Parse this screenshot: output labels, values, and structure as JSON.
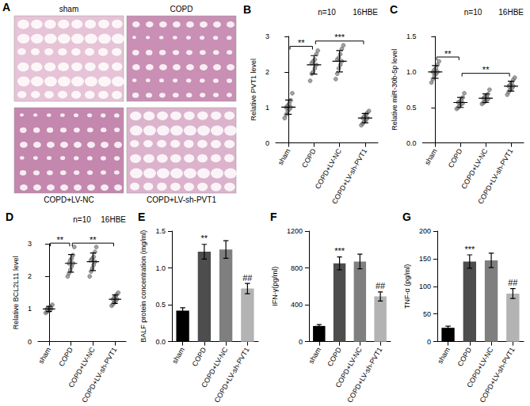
{
  "image_panel": {
    "letter": "A",
    "labels": [
      "sham",
      "COPD",
      "COPD+LV-NC",
      "COPD+LV-sh-PVT1"
    ]
  },
  "chart_data": [
    {
      "letter": "B",
      "type": "scatter",
      "annotations": [
        "n=10",
        "16HBE"
      ],
      "y_label": "Relative PVT1 level",
      "categories": [
        "sham",
        "COPD",
        "COPD+LV-NC",
        "COPD+LV-sh-PVT1"
      ],
      "points": [
        [
          0.7,
          0.8,
          0.9,
          0.95,
          1.0,
          1.0,
          1.05,
          1.1,
          1.2,
          1.4
        ],
        [
          1.75,
          1.95,
          2.0,
          2.1,
          2.2,
          2.25,
          2.3,
          2.35,
          2.5,
          2.6
        ],
        [
          1.8,
          1.95,
          2.1,
          2.2,
          2.3,
          2.35,
          2.4,
          2.5,
          2.65,
          2.75
        ],
        [
          0.5,
          0.55,
          0.6,
          0.65,
          0.7,
          0.7,
          0.75,
          0.8,
          0.85,
          0.9
        ]
      ],
      "means": [
        1.01,
        2.2,
        2.3,
        0.7
      ],
      "errors": [
        0.2,
        0.26,
        0.3,
        0.13
      ],
      "color": "#8c8c8c",
      "marker": "circle",
      "grid": false,
      "ylim": [
        0,
        3
      ],
      "yticks": [
        0,
        1,
        2,
        3
      ],
      "brackets": [
        {
          "from": "sham",
          "to": "COPD",
          "text": "**"
        },
        {
          "from": "COPD",
          "to": "COPD+LV-sh-PVT1",
          "text": "***"
        }
      ]
    },
    {
      "letter": "C",
      "type": "scatter",
      "annotations": [
        "n=10",
        "16HBE"
      ],
      "y_label": "Relative miR-30b-5p level",
      "categories": [
        "sham",
        "COPD",
        "COPD+LV-NC",
        "COPD+LV-sh-PVT1"
      ],
      "points": [
        [
          0.85,
          0.9,
          0.95,
          0.97,
          1.0,
          1.0,
          1.03,
          1.05,
          1.1,
          1.15
        ],
        [
          0.48,
          0.5,
          0.52,
          0.55,
          0.56,
          0.57,
          0.58,
          0.6,
          0.64,
          0.7
        ],
        [
          0.55,
          0.57,
          0.58,
          0.6,
          0.62,
          0.63,
          0.65,
          0.66,
          0.69,
          0.75
        ],
        [
          0.68,
          0.72,
          0.75,
          0.77,
          0.8,
          0.8,
          0.82,
          0.85,
          0.89,
          0.92
        ]
      ],
      "means": [
        1.0,
        0.57,
        0.63,
        0.8
      ],
      "errors": [
        0.09,
        0.07,
        0.06,
        0.07
      ],
      "color": "#8c8c8c",
      "marker": "circle",
      "grid": false,
      "ylim": [
        0,
        1.5
      ],
      "yticks": [
        {
          "value": 0,
          "label": "0.0"
        },
        0.5,
        {
          "value": 1,
          "label": "1.0"
        },
        1.5
      ],
      "brackets": [
        {
          "from": "sham",
          "to": "COPD",
          "text": "**"
        },
        {
          "from": "COPD",
          "to": "COPD+LV-sh-PVT1",
          "text": "**"
        }
      ]
    },
    {
      "letter": "D",
      "type": "scatter",
      "annotations": [
        "n=10",
        "16HBE"
      ],
      "y_label": "Relative BCL2L11 level",
      "categories": [
        "sham",
        "COPD",
        "COPD+LV-NC",
        "COPD+LV-sh-PVT1"
      ],
      "points": [
        [
          0.88,
          0.92,
          0.95,
          0.97,
          1.0,
          1.0,
          1.02,
          1.05,
          1.08,
          1.13
        ],
        [
          2.0,
          2.1,
          2.2,
          2.3,
          2.4,
          2.4,
          2.5,
          2.55,
          2.65,
          2.9
        ],
        [
          2.0,
          2.15,
          2.25,
          2.35,
          2.45,
          2.5,
          2.55,
          2.6,
          2.75,
          2.9
        ],
        [
          1.1,
          1.15,
          1.2,
          1.25,
          1.3,
          1.3,
          1.35,
          1.4,
          1.45,
          1.5
        ]
      ],
      "means": [
        1.0,
        2.4,
        2.45,
        1.3
      ],
      "errors": [
        0.08,
        0.27,
        0.27,
        0.13
      ],
      "color": "#8c8c8c",
      "marker": "circle",
      "grid": false,
      "ylim": [
        0,
        3
      ],
      "yticks": [
        0,
        1,
        2,
        3
      ],
      "brackets": [
        {
          "from": "sham",
          "to": "COPD",
          "text": "**"
        },
        {
          "from": "COPD",
          "to": "COPD+LV-sh-PVT1",
          "text": "**"
        }
      ]
    },
    {
      "letter": "E",
      "type": "bar",
      "y_label": "BALF protein concentration (mg/ml)",
      "categories": [
        "sham",
        "COPD",
        "COPD+LV-NC",
        "COPD+LV-sh-PVT1"
      ],
      "values": [
        0.42,
        1.22,
        1.25,
        0.72
      ],
      "errors": [
        0.04,
        0.1,
        0.12,
        0.07
      ],
      "colors": [
        "#000000",
        "#4d4d4d",
        "#7f7f7f",
        "#b3b3b3"
      ],
      "grid": false,
      "ylim": [
        0,
        1.5
      ],
      "yticks": [
        {
          "value": 0,
          "label": "0.0"
        },
        0.5,
        {
          "value": 1,
          "label": "1.0"
        },
        1.5
      ],
      "marks": [
        {
          "category": "COPD",
          "text": "**"
        },
        {
          "category": "COPD+LV-sh-PVT1",
          "text": "##"
        }
      ]
    },
    {
      "letter": "F",
      "type": "bar",
      "y_label": "IFN-γ(pg/ml)",
      "categories": [
        "sham",
        "COPD",
        "COPD+LV-NC",
        "COPD+LV-sh-PVT1"
      ],
      "values": [
        170,
        850,
        870,
        490
      ],
      "errors": [
        15,
        70,
        80,
        50
      ],
      "colors": [
        "#000000",
        "#4d4d4d",
        "#7f7f7f",
        "#b3b3b3"
      ],
      "grid": false,
      "ylim": [
        0,
        1200
      ],
      "yticks": [
        0,
        400,
        800,
        1200
      ],
      "marks": [
        {
          "category": "COPD",
          "text": "***"
        },
        {
          "category": "COPD+LV-sh-PVT1",
          "text": "##"
        }
      ]
    },
    {
      "letter": "G",
      "type": "bar",
      "y_label": "TNF-α (pg/ml)",
      "categories": [
        "sham",
        "COPD",
        "COPD+LV-NC",
        "COPD+LV-sh-PVT1"
      ],
      "values": [
        25,
        145,
        147,
        87
      ],
      "errors": [
        3,
        12,
        13,
        9
      ],
      "colors": [
        "#000000",
        "#4d4d4d",
        "#7f7f7f",
        "#b3b3b3"
      ],
      "grid": false,
      "ylim": [
        0,
        200
      ],
      "yticks": [
        0,
        50,
        100,
        150,
        200
      ],
      "marks": [
        {
          "category": "COPD",
          "text": "***"
        },
        {
          "category": "COPD+LV-sh-PVT1",
          "text": "##"
        }
      ]
    }
  ]
}
